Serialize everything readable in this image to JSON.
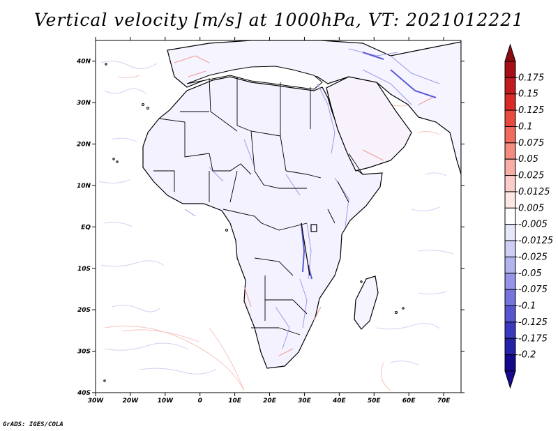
{
  "title": "Vertical velocity [m/s] at 1000hPa, VT: 2021012221",
  "credit": "GrADS: IGES/COLA",
  "map": {
    "lon_range": [
      -30,
      75
    ],
    "lat_range": [
      -40,
      45
    ],
    "lat_ticks": [
      {
        "value": 40,
        "label": "40N"
      },
      {
        "value": 30,
        "label": "30N"
      },
      {
        "value": 20,
        "label": "20N"
      },
      {
        "value": 10,
        "label": "10N"
      },
      {
        "value": 0,
        "label": "EQ"
      },
      {
        "value": -10,
        "label": "10S"
      },
      {
        "value": -20,
        "label": "20S"
      },
      {
        "value": -30,
        "label": "30S"
      },
      {
        "value": -40,
        "label": "40S"
      }
    ],
    "lon_ticks": [
      {
        "value": -30,
        "label": "30W"
      },
      {
        "value": -20,
        "label": "20W"
      },
      {
        "value": -10,
        "label": "10W"
      },
      {
        "value": 0,
        "label": "0"
      },
      {
        "value": 10,
        "label": "10E"
      },
      {
        "value": 20,
        "label": "20E"
      },
      {
        "value": 30,
        "label": "30E"
      },
      {
        "value": 40,
        "label": "40E"
      },
      {
        "value": 50,
        "label": "50E"
      },
      {
        "value": 60,
        "label": "60E"
      },
      {
        "value": 70,
        "label": "70E"
      }
    ]
  },
  "colorbar": {
    "levels": [
      {
        "label": "0.175",
        "color": "#a50f15"
      },
      {
        "label": "0.15",
        "color": "#c21b1f"
      },
      {
        "label": "0.125",
        "color": "#d92a27"
      },
      {
        "label": "0.1",
        "color": "#e84a40"
      },
      {
        "label": "0.075",
        "color": "#f06a5e"
      },
      {
        "label": "0.05",
        "color": "#f48c82"
      },
      {
        "label": "0.025",
        "color": "#f8aea6"
      },
      {
        "label": "0.0125",
        "color": "#fbcdc8"
      },
      {
        "label": "0.005",
        "color": "#fde8e5"
      },
      {
        "label": "-0.005",
        "color": "#ffffff"
      },
      {
        "label": "-0.0125",
        "color": "#e7e7fb"
      },
      {
        "label": "-0.025",
        "color": "#cfcff6"
      },
      {
        "label": "-0.05",
        "color": "#b3b3f0"
      },
      {
        "label": "-0.075",
        "color": "#9494e8"
      },
      {
        "label": "-0.1",
        "color": "#7575dd"
      },
      {
        "label": "-0.125",
        "color": "#5656cf"
      },
      {
        "label": "-0.175",
        "color": "#3a3abf"
      },
      {
        "label": "-0.2",
        "color": "#2323a8"
      },
      {
        "label": "",
        "color": "#120a8a"
      }
    ],
    "top_arrow_color": "#8b0d10",
    "bottom_arrow_color": "#1a0a8f"
  }
}
